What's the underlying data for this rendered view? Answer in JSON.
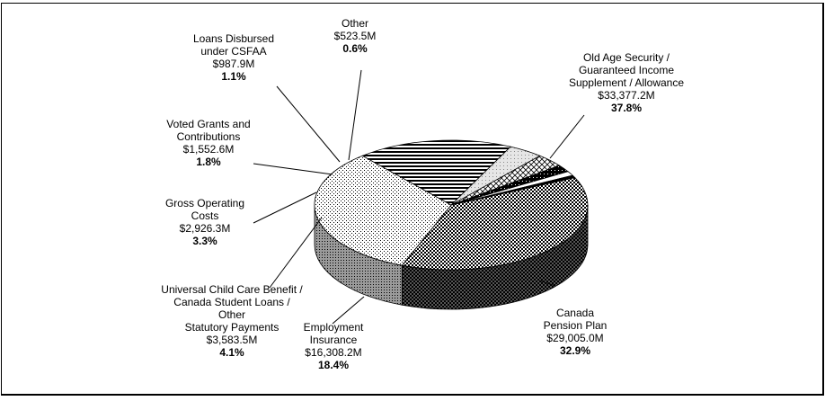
{
  "chart_data": {
    "type": "pie",
    "style": "3d",
    "title": "",
    "slices": [
      {
        "name": "Old Age Security / Guaranteed Income Supplement / Allowance",
        "lines": [
          "Old Age Security /",
          "Guaranteed Income",
          "Supplement / Allowance"
        ],
        "amount": "$33,377.2M",
        "percent": "37.8%",
        "value": 37.8,
        "pattern": "checker"
      },
      {
        "name": "Canada Pension Plan",
        "lines": [
          "Canada",
          "Pension Plan"
        ],
        "amount": "$29,005.0M",
        "percent": "32.9%",
        "value": 32.9,
        "pattern": "dots"
      },
      {
        "name": "Employment Insurance",
        "lines": [
          "Employment",
          "Insurance"
        ],
        "amount": "$16,308.2M",
        "percent": "18.4%",
        "value": 18.4,
        "pattern": "hstripes"
      },
      {
        "name": "Universal Child Care Benefit / Canada Student Loans / Other Statutory Payments",
        "lines": [
          "Universal Child Care Benefit /",
          "Canada Student Loans /",
          "Other",
          "Statutory Payments"
        ],
        "amount": "$3,583.5M",
        "percent": "4.1%",
        "value": 4.1,
        "pattern": "lightgray"
      },
      {
        "name": "Gross Operating Costs",
        "lines": [
          "Gross Operating",
          "Costs"
        ],
        "amount": "$2,926.3M",
        "percent": "3.3%",
        "value": 3.3,
        "pattern": "crosshatch"
      },
      {
        "name": "Voted Grants and Contributions",
        "lines": [
          "Voted Grants and",
          "Contributions"
        ],
        "amount": "$1,552.6M",
        "percent": "1.8%",
        "value": 1.8,
        "pattern": "blackdots"
      },
      {
        "name": "Loans Disbursed under CSFAA",
        "lines": [
          "Loans Disbursed",
          "under CSFAA"
        ],
        "amount": "$987.9M",
        "percent": "1.1%",
        "value": 1.1,
        "pattern": "white"
      },
      {
        "name": "Other",
        "lines": [
          "Other"
        ],
        "amount": "$523.5M",
        "percent": "0.6%",
        "value": 0.6,
        "pattern": "black"
      }
    ]
  }
}
